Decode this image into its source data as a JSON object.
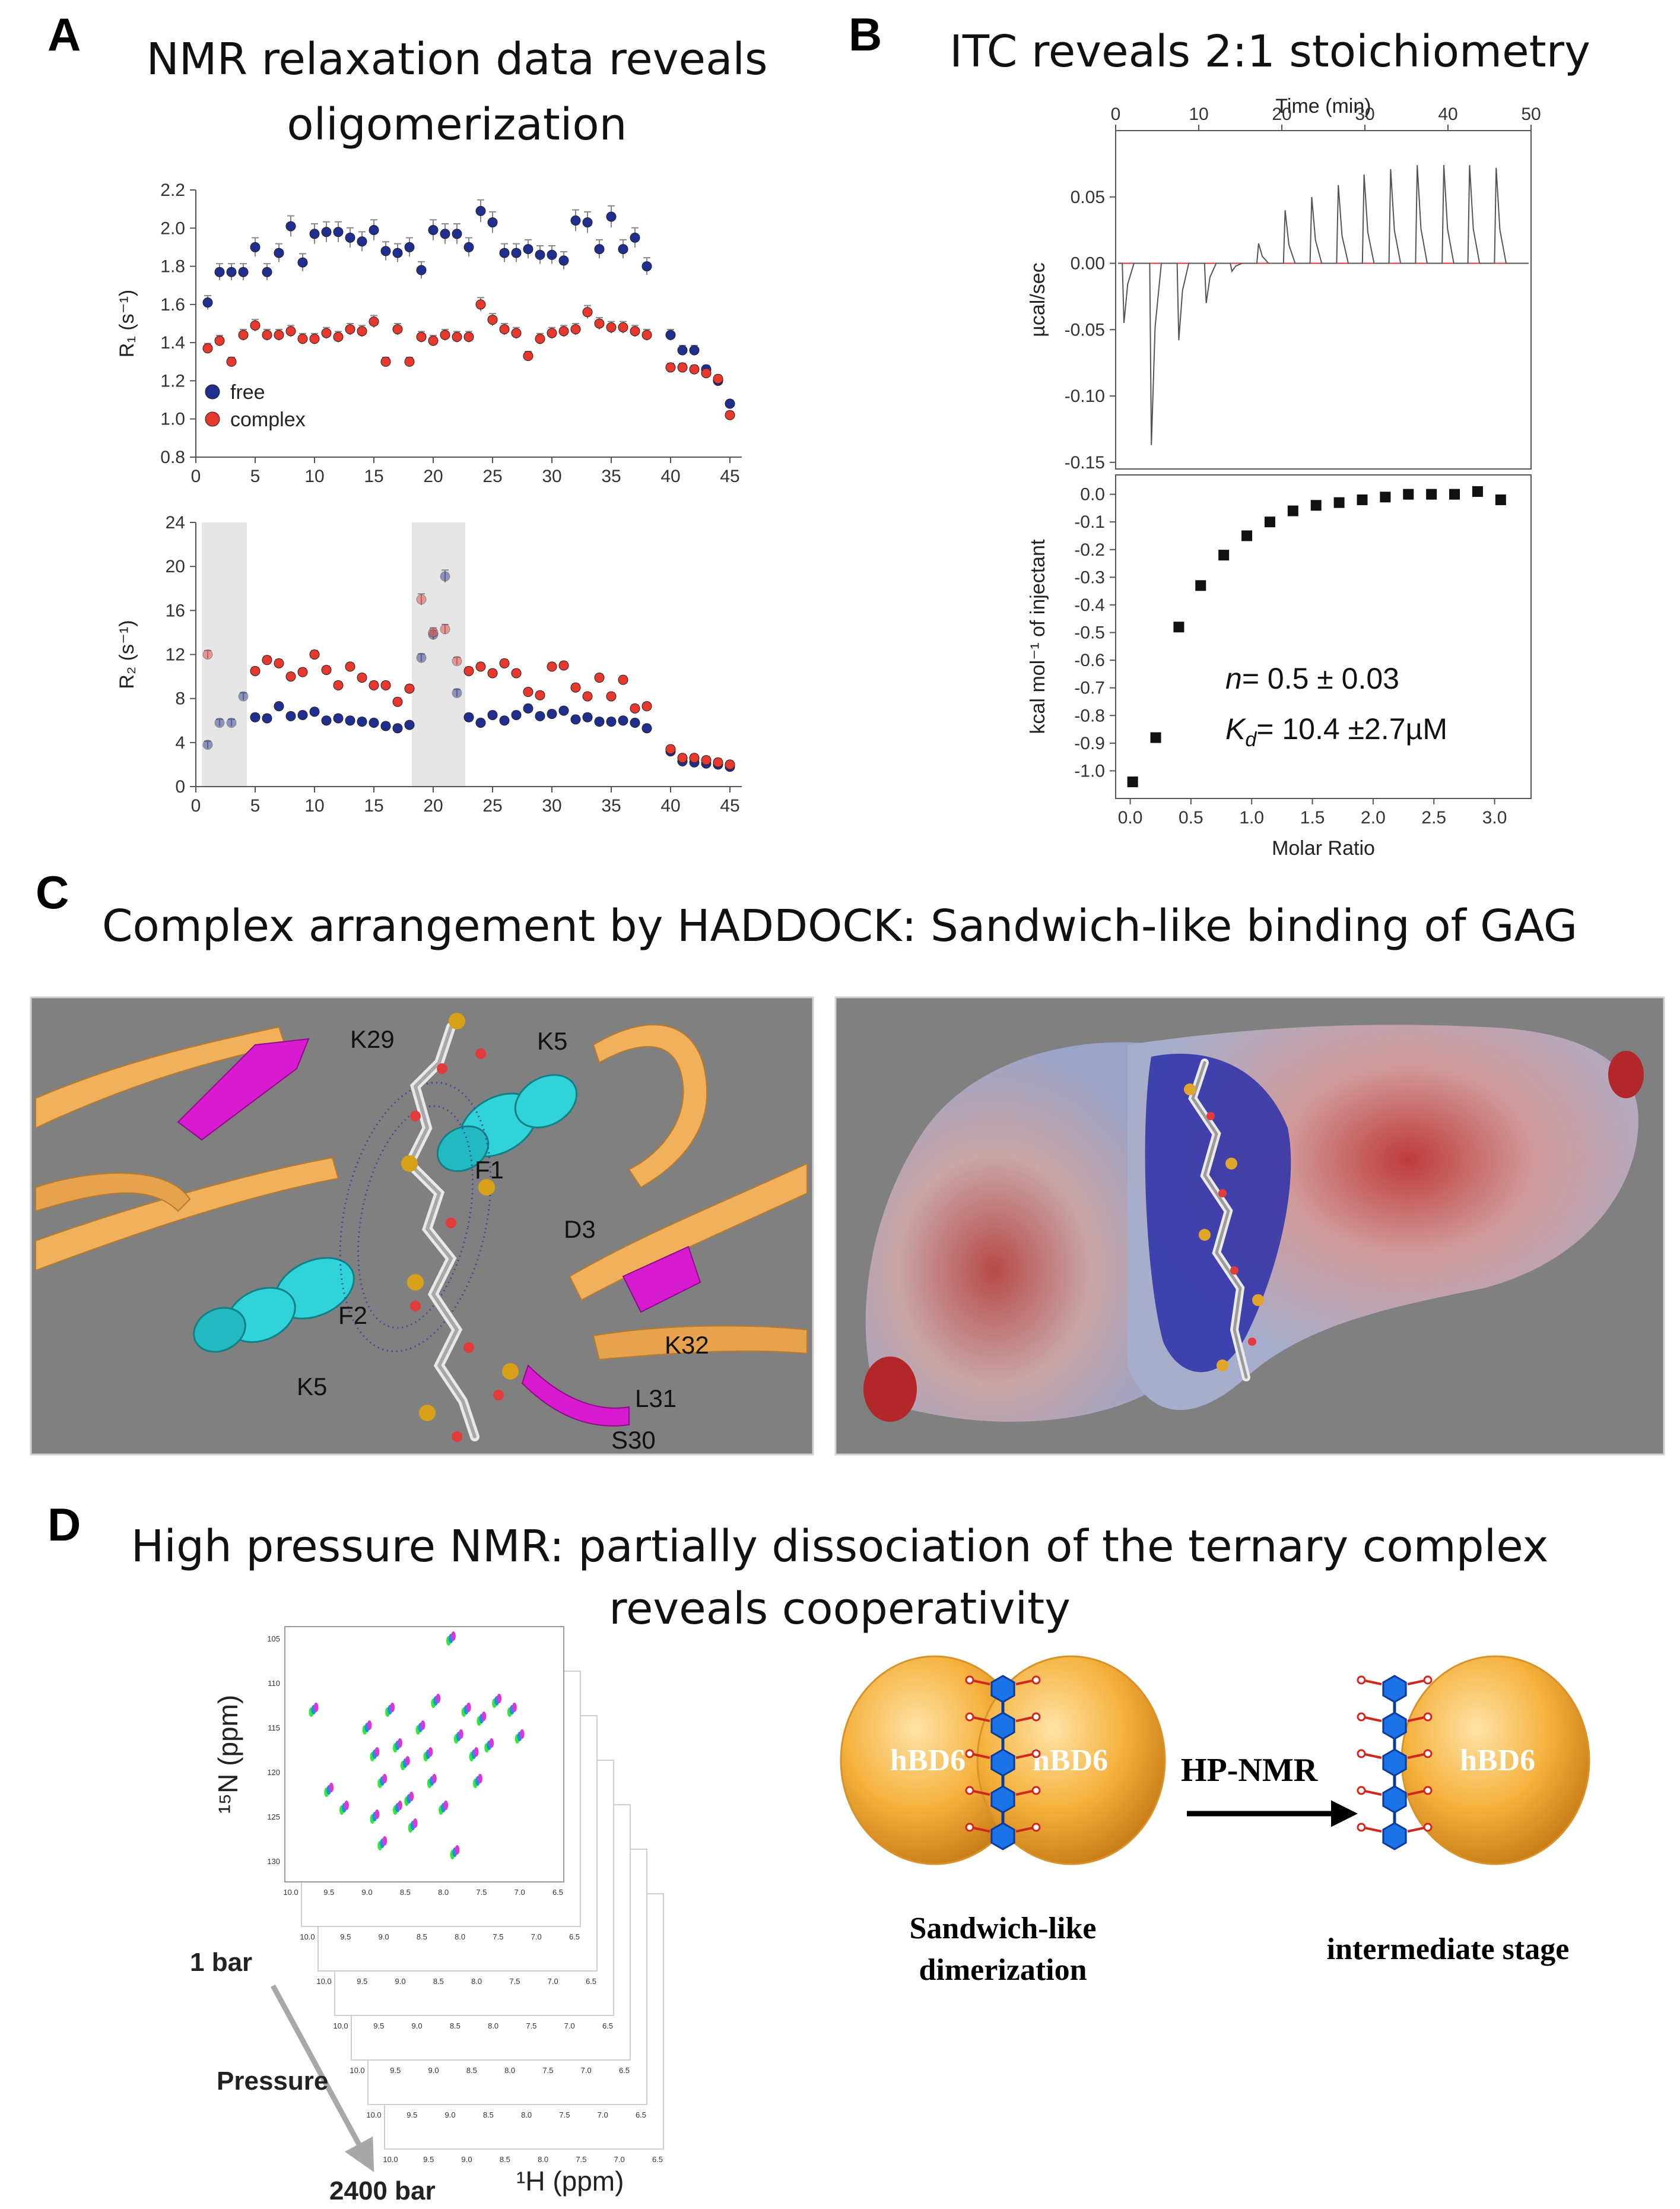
{
  "panels": {
    "A": {
      "letter": "A",
      "title_line1": "NMR relaxation data reveals",
      "title_line2": "oligomerization"
    },
    "B": {
      "letter": "B",
      "title": "ITC reveals 2:1 stoichiometry"
    },
    "C": {
      "letter": "C",
      "title": "Complex arrangement by HADDOCK: Sandwich-like binding of GAG"
    },
    "D": {
      "letter": "D",
      "title_line1": "High pressure NMR: partially dissociation  of the ternary complex",
      "title_line2": "reveals cooperativity"
    }
  },
  "chart_data": [
    {
      "id": "A-R1",
      "type": "scatter",
      "ylabel": "R₁ (s⁻¹)",
      "xlim": [
        0,
        46
      ],
      "ylim": [
        0.8,
        2.2
      ],
      "xticks": [
        "0",
        "5",
        "10",
        "15",
        "20",
        "25",
        "30",
        "35",
        "40",
        "45"
      ],
      "yticks": [
        "0.8",
        "1.0",
        "1.2",
        "1.4",
        "1.6",
        "1.8",
        "2.0",
        "2.2"
      ],
      "legend": {
        "placement": "bottom-left",
        "entries": [
          "free",
          "complex"
        ]
      },
      "series": [
        {
          "name": "free",
          "color": "#1f2e8f",
          "x": [
            1,
            2,
            3,
            4,
            5,
            6,
            7,
            8,
            9,
            10,
            11,
            12,
            13,
            14,
            15,
            16,
            17,
            18,
            19,
            20,
            21,
            22,
            23,
            24,
            25,
            26,
            27,
            28,
            29,
            30,
            31,
            32,
            33,
            34,
            35,
            36,
            37,
            38,
            40,
            41,
            42,
            43,
            44,
            45
          ],
          "y": [
            1.61,
            1.77,
            1.77,
            1.77,
            1.9,
            1.77,
            1.87,
            2.01,
            1.82,
            1.97,
            1.98,
            1.98,
            1.95,
            1.93,
            1.99,
            1.88,
            1.87,
            1.9,
            1.78,
            1.99,
            1.97,
            1.97,
            1.9,
            2.09,
            2.03,
            1.87,
            1.87,
            1.89,
            1.86,
            1.86,
            1.83,
            2.04,
            2.03,
            1.89,
            2.06,
            1.89,
            1.95,
            1.8,
            1.44,
            1.36,
            1.36,
            1.26,
            1.2,
            1.08
          ]
        },
        {
          "name": "complex",
          "color": "#e8372d",
          "x": [
            1,
            2,
            3,
            4,
            5,
            6,
            7,
            8,
            9,
            10,
            11,
            12,
            13,
            14,
            15,
            16,
            17,
            18,
            19,
            20,
            21,
            22,
            23,
            24,
            25,
            26,
            27,
            28,
            29,
            30,
            31,
            32,
            33,
            34,
            35,
            36,
            37,
            38,
            40,
            41,
            42,
            43,
            44,
            45
          ],
          "y": [
            1.37,
            1.41,
            1.3,
            1.44,
            1.49,
            1.44,
            1.44,
            1.46,
            1.42,
            1.42,
            1.45,
            1.43,
            1.47,
            1.46,
            1.51,
            1.3,
            1.47,
            1.3,
            1.43,
            1.41,
            1.44,
            1.43,
            1.43,
            1.6,
            1.52,
            1.47,
            1.45,
            1.33,
            1.42,
            1.45,
            1.46,
            1.47,
            1.56,
            1.5,
            1.48,
            1.48,
            1.46,
            1.44,
            1.27,
            1.27,
            1.26,
            1.24,
            1.21,
            1.02
          ]
        }
      ]
    },
    {
      "id": "A-R2",
      "type": "scatter",
      "ylabel": "R₂ (s⁻¹)",
      "xlim": [
        0,
        46
      ],
      "ylim": [
        0,
        24
      ],
      "xticks": [
        "0",
        "5",
        "10",
        "15",
        "20",
        "25",
        "30",
        "35",
        "40",
        "45"
      ],
      "yticks": [
        "0",
        "4",
        "8",
        "12",
        "16",
        "20",
        "24"
      ],
      "shaded_x_ranges": [
        [
          0.5,
          4.3
        ],
        [
          18.2,
          22.7
        ]
      ],
      "series": [
        {
          "name": "free",
          "color": "#1f2e8f",
          "x": [
            1,
            2,
            3,
            4,
            5,
            6,
            7,
            8,
            9,
            10,
            11,
            12,
            13,
            14,
            15,
            16,
            17,
            18,
            19,
            20,
            21,
            22,
            23,
            24,
            25,
            26,
            27,
            28,
            29,
            30,
            31,
            32,
            33,
            34,
            35,
            36,
            37,
            38,
            40,
            41,
            42,
            43,
            44,
            45
          ],
          "y": [
            3.8,
            5.8,
            5.8,
            8.2,
            6.3,
            6.2,
            7.3,
            6.4,
            6.5,
            6.8,
            6.0,
            6.2,
            6.0,
            5.9,
            5.8,
            5.5,
            5.3,
            5.6,
            11.7,
            13.8,
            19.1,
            8.5,
            6.3,
            5.8,
            6.5,
            6.0,
            6.5,
            7.1,
            6.4,
            6.6,
            6.9,
            6.1,
            6.3,
            5.9,
            5.9,
            6.0,
            5.8,
            5.3,
            3.2,
            2.3,
            2.2,
            2.1,
            2.0,
            1.8
          ]
        },
        {
          "name": "complex",
          "color": "#e8372d",
          "x": [
            1,
            5,
            6,
            7,
            8,
            9,
            10,
            11,
            12,
            13,
            14,
            15,
            16,
            17,
            18,
            19,
            20,
            21,
            22,
            23,
            24,
            25,
            26,
            27,
            28,
            29,
            30,
            31,
            32,
            33,
            34,
            35,
            36,
            37,
            38,
            40,
            41,
            42,
            43,
            44,
            45
          ],
          "y": [
            12.0,
            10.5,
            11.5,
            11.2,
            10.0,
            10.4,
            12.0,
            10.6,
            9.2,
            10.9,
            9.9,
            9.2,
            9.2,
            7.7,
            8.9,
            17.0,
            14.0,
            14.3,
            11.4,
            10.5,
            10.9,
            10.3,
            11.2,
            10.3,
            8.6,
            8.3,
            10.9,
            11.0,
            9.0,
            8.2,
            9.9,
            8.2,
            9.7,
            7.1,
            7.3,
            3.4,
            2.6,
            2.6,
            2.4,
            2.2,
            2.0
          ]
        }
      ]
    },
    {
      "id": "B-raw",
      "type": "line",
      "xlabel": "Time (min)",
      "ylabel": "µcal/sec",
      "xlim": [
        0,
        50
      ],
      "ylim": [
        -0.155,
        0.1
      ],
      "xticks": [
        "0",
        "10",
        "20",
        "30",
        "40",
        "50"
      ],
      "yticks": [
        "-0.15",
        "-0.10",
        "-0.05",
        "0.00",
        "0.05"
      ],
      "injection_times": [
        1.0,
        4.3,
        7.6,
        10.9,
        14.0,
        17.2,
        20.4,
        23.6,
        26.8,
        29.9,
        33.1,
        36.3,
        39.5,
        42.6,
        45.8
      ],
      "peak_heights": [
        -0.045,
        -0.137,
        -0.058,
        -0.03,
        -0.006,
        0.015,
        0.04,
        0.05,
        0.059,
        0.067,
        0.071,
        0.074,
        0.074,
        0.074,
        0.072
      ]
    },
    {
      "id": "B-isotherm",
      "type": "scatter",
      "xlabel": "Molar Ratio",
      "ylabel": "kcal mol⁻¹ of injectant",
      "xlim": [
        -0.12,
        3.3
      ],
      "ylim": [
        -1.1,
        0.07
      ],
      "xticks": [
        "0.0",
        "0.5",
        "1.0",
        "1.5",
        "2.0",
        "2.5",
        "3.0"
      ],
      "yticks": [
        "-1.0",
        "-0.9",
        "-0.8",
        "-0.7",
        "-0.6",
        "-0.5",
        "-0.4",
        "-0.3",
        "-0.2",
        "-0.1",
        "0.0"
      ],
      "x": [
        0.02,
        0.21,
        0.4,
        0.58,
        0.77,
        0.96,
        1.15,
        1.34,
        1.53,
        1.72,
        1.91,
        2.1,
        2.29,
        2.48,
        2.67,
        2.86,
        3.05
      ],
      "y": [
        -1.04,
        -0.88,
        -0.48,
        -0.33,
        -0.22,
        -0.15,
        -0.1,
        -0.06,
        -0.04,
        -0.03,
        -0.02,
        -0.01,
        0.0,
        0.0,
        0.0,
        0.01,
        -0.02
      ],
      "annotation_n_label": "n",
      "annotation_n_value": "= 0.5 ± 0.03",
      "annotation_kd_label": "K",
      "annotation_kd_sub": "d",
      "annotation_kd_value": "= 10.4  ±2.7µM"
    },
    {
      "id": "D-hsqc",
      "type": "scatter",
      "xlabel": "¹H (ppm)",
      "ylabel": "¹⁵N (ppm)",
      "xlim": [
        6.5,
        10.0
      ],
      "ylim": [
        105,
        131
      ],
      "xticks": [
        "10.0",
        "9.5",
        "9.0",
        "8.5",
        "8.0",
        "7.5",
        "7.0",
        "6.5"
      ],
      "yticks": [
        "105",
        "110",
        "115",
        "120",
        "125",
        "130"
      ],
      "peaks": [
        [
          9.7,
          113
        ],
        [
          9.5,
          122
        ],
        [
          9.3,
          124
        ],
        [
          9.0,
          115
        ],
        [
          8.9,
          118
        ],
        [
          8.8,
          121
        ],
        [
          8.7,
          113
        ],
        [
          8.6,
          117
        ],
        [
          8.5,
          119
        ],
        [
          8.45,
          123
        ],
        [
          8.4,
          126
        ],
        [
          8.3,
          115
        ],
        [
          8.2,
          118
        ],
        [
          8.15,
          121
        ],
        [
          8.1,
          112
        ],
        [
          8.0,
          124
        ],
        [
          7.9,
          105
        ],
        [
          7.85,
          129
        ],
        [
          7.8,
          116
        ],
        [
          7.7,
          113
        ],
        [
          7.6,
          118
        ],
        [
          7.55,
          121
        ],
        [
          7.5,
          114
        ],
        [
          7.4,
          117
        ],
        [
          7.3,
          112
        ],
        [
          7.1,
          113
        ],
        [
          7.0,
          116
        ],
        [
          8.8,
          128
        ],
        [
          8.6,
          124
        ],
        [
          8.9,
          125
        ]
      ]
    }
  ],
  "panel_c": {
    "residue_labels": [
      "K29",
      "K5",
      "F1",
      "D3",
      "F2",
      "K5",
      "K32",
      "L31",
      "S30"
    ],
    "colors": {
      "strand": "#f0b05c",
      "helix": "#2fd3d8",
      "sheet": "#d81bd0",
      "background": "#808080"
    }
  },
  "panel_d": {
    "stack_labels": {
      "top": "1 bar",
      "middle": "Pressure",
      "bottom": "2400 bar"
    },
    "protein_label": "hBD6",
    "arrow_label": "HP-NMR",
    "caption_left_line1": "Sandwich-like",
    "caption_left_line2": "dimerization",
    "caption_right": "intermediate stage",
    "colors": {
      "protein": "#f3a72b",
      "hexagon": "#1c73e8",
      "bond": "#d0281f"
    }
  }
}
